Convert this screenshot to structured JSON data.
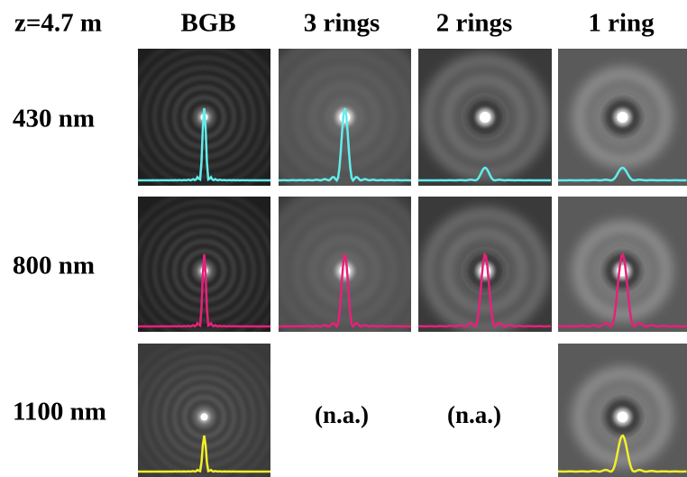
{
  "header": {
    "corner": "z=4.7 m",
    "columns": [
      "BGB",
      "3 rings",
      "2 rings",
      "1 ring"
    ]
  },
  "rows": [
    {
      "label": "430 nm"
    },
    {
      "label": "800 nm"
    },
    {
      "label": "1100 nm",
      "notes": [
        "(n.a.)",
        "(n.a.)"
      ]
    }
  ]
}
